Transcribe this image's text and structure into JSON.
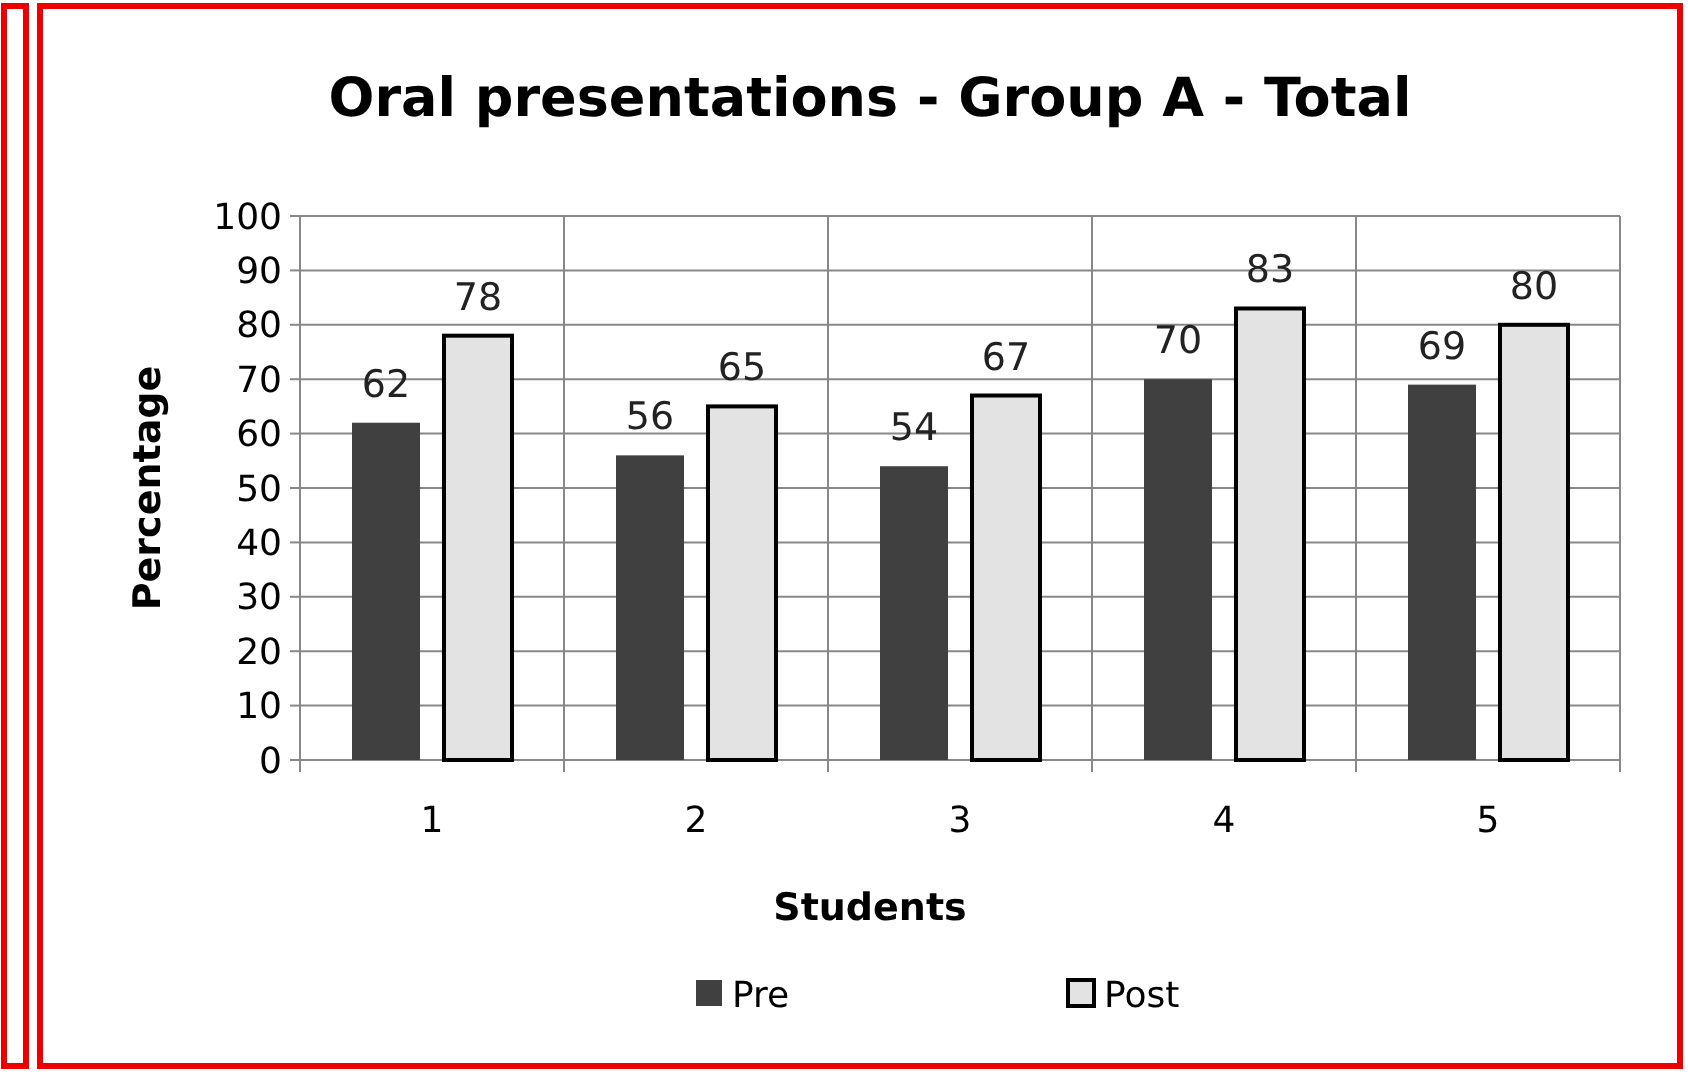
{
  "chart_data": {
    "type": "bar",
    "title": "Oral presentations - Group A - Total",
    "xlabel": "Students",
    "ylabel": "Percentage",
    "categories": [
      "1",
      "2",
      "3",
      "4",
      "5"
    ],
    "series": [
      {
        "name": "Pre",
        "color": "#404040",
        "values": [
          62,
          56,
          54,
          70,
          69
        ]
      },
      {
        "name": "Post",
        "color": "#e3e3e3",
        "values": [
          78,
          65,
          67,
          83,
          80
        ]
      }
    ],
    "ylim": [
      0,
      100
    ],
    "yticks": [
      0,
      10,
      20,
      30,
      40,
      50,
      60,
      70,
      80,
      90,
      100
    ],
    "grid": true,
    "legend": "bottom",
    "data_labels": true
  }
}
